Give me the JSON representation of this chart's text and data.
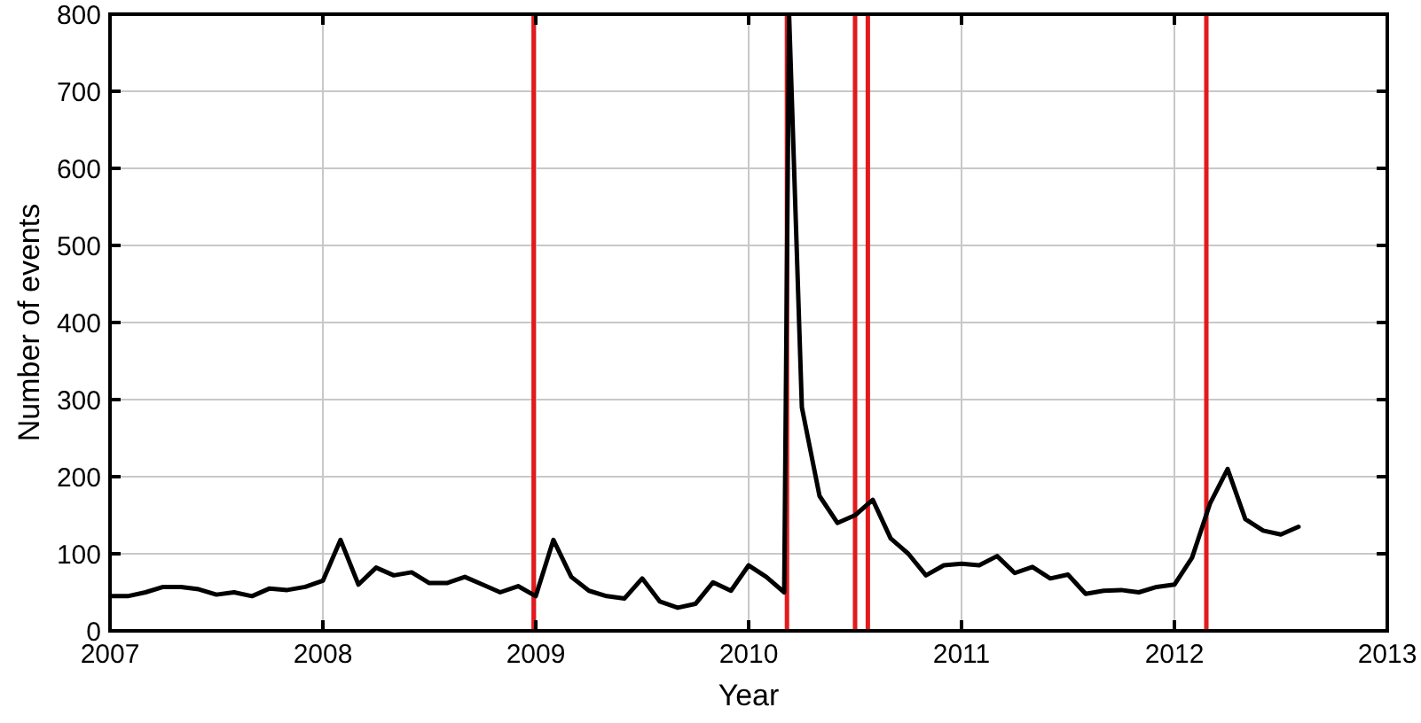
{
  "chart_data": {
    "type": "line",
    "xlabel": "Year",
    "ylabel": "Number of events",
    "x": [
      2007,
      2007.083,
      2007.167,
      2007.25,
      2007.333,
      2007.417,
      2007.5,
      2007.583,
      2007.667,
      2007.75,
      2007.833,
      2007.917,
      2008,
      2008.083,
      2008.167,
      2008.25,
      2008.333,
      2008.417,
      2008.5,
      2008.583,
      2008.667,
      2008.75,
      2008.833,
      2008.917,
      2009,
      2009.083,
      2009.167,
      2009.25,
      2009.333,
      2009.417,
      2009.5,
      2009.583,
      2009.667,
      2009.75,
      2009.833,
      2009.917,
      2010,
      2010.083,
      2010.167,
      2010.19,
      2010.25,
      2010.333,
      2010.417,
      2010.5,
      2010.583,
      2010.667,
      2010.75,
      2010.833,
      2010.917,
      2011,
      2011.083,
      2011.167,
      2011.25,
      2011.333,
      2011.417,
      2011.5,
      2011.583,
      2011.667,
      2011.75,
      2011.833,
      2011.917,
      2012,
      2012.083,
      2012.167,
      2012.25,
      2012.333,
      2012.417,
      2012.5,
      2012.583
    ],
    "series": [
      {
        "color": "#000000",
        "values": [
          45,
          45,
          50,
          57,
          57,
          54,
          47,
          50,
          45,
          55,
          53,
          57,
          65,
          118,
          60,
          82,
          72,
          76,
          62,
          62,
          70,
          60,
          50,
          58,
          45,
          118,
          70,
          52,
          45,
          42,
          68,
          38,
          30,
          35,
          63,
          52,
          85,
          70,
          50,
          800,
          290,
          175,
          140,
          150,
          170,
          120,
          100,
          72,
          85,
          87,
          85,
          97,
          75,
          83,
          68,
          73,
          48,
          52,
          53,
          50,
          57,
          60,
          95,
          165,
          210,
          145,
          130,
          125,
          135
        ]
      }
    ],
    "ref_lines": [
      {
        "axis": "x",
        "value": 2008.99,
        "color": "#e31a1c"
      },
      {
        "axis": "x",
        "value": 2010.18,
        "color": "#e31a1c"
      },
      {
        "axis": "x",
        "value": 2010.5,
        "color": "#e31a1c"
      },
      {
        "axis": "x",
        "value": 2010.56,
        "color": "#e31a1c"
      },
      {
        "axis": "x",
        "value": 2012.15,
        "color": "#e31a1c"
      }
    ],
    "xlim": [
      2007,
      2013
    ],
    "xticks": [
      2007,
      2008,
      2009,
      2010,
      2011,
      2012,
      2013
    ],
    "ylim": [
      0,
      800
    ],
    "yticks": [
      0,
      100,
      200,
      300,
      400,
      500,
      600,
      700,
      800
    ],
    "grid": true,
    "line_style": "solid",
    "marker": "none"
  }
}
